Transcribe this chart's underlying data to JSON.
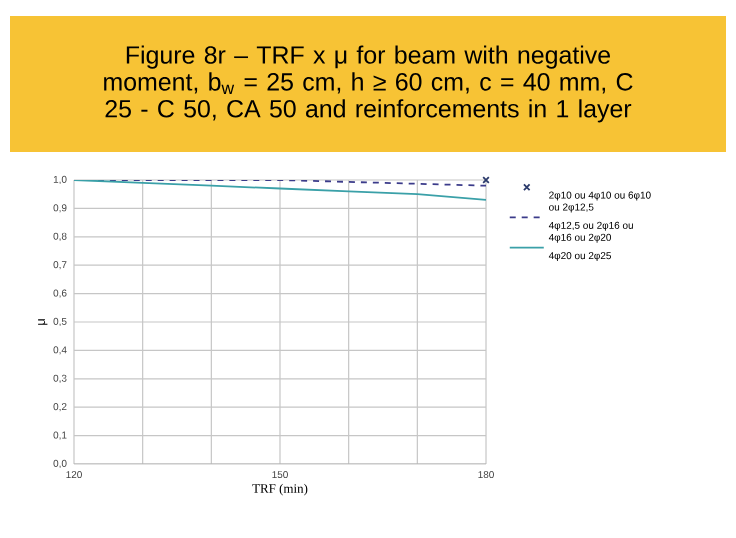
{
  "chart_data": {
    "type": "line",
    "title": "Figure 8r – TRF x μ for beam with negative moment, b$_{w}$ = 25 cm, h ≥ 60 cm, c = 40 mm, C 25 - C 50, CA 50 and reinforcements in 1 layer",
    "xlabel": "TRF (min)",
    "ylabel": "μ",
    "xlim": [
      120,
      180
    ],
    "xticks": [
      120,
      {
        "value": 130,
        "label": null
      },
      {
        "value": 140,
        "label": null
      },
      150,
      {
        "value": 160,
        "label": null
      },
      {
        "value": 170,
        "label": null
      },
      180
    ],
    "ylim": [
      0,
      1
    ],
    "yticks": [
      {
        "value": 0,
        "label": "0,0"
      },
      {
        "value": 0.1,
        "label": "0,1"
      },
      {
        "value": 0.2,
        "label": "0,2"
      },
      {
        "value": 0.3,
        "label": "0,3"
      },
      {
        "value": 0.4,
        "label": "0,4"
      },
      {
        "value": 0.5,
        "label": "0,5"
      },
      {
        "value": 0.6,
        "label": "0,6"
      },
      {
        "value": 0.7,
        "label": "0,7"
      },
      {
        "value": 0.8,
        "label": "0,8"
      },
      {
        "value": 0.9,
        "label": "0,9"
      },
      {
        "value": 1,
        "label": "1,0"
      }
    ],
    "grid": true,
    "legend": "right",
    "series": [
      {
        "name": "2φ10 ou 4φ10 ou 6φ10 ou 2φ12,5",
        "type": "scatter",
        "marker": "cross",
        "color": "#2b3a6b",
        "x": [
          180
        ],
        "values": [
          1.0
        ]
      },
      {
        "name": "4φ12,5 ou 2φ16 ou 4φ16 ou 2φ20",
        "type": "line",
        "line_style": "dashed",
        "color": "#3b3b8a",
        "x": [
          120,
          150,
          180
        ],
        "values": [
          1.0,
          1.0,
          0.98
        ]
      },
      {
        "name": "4φ20 ou 2φ25",
        "line_style": "solid",
        "color": "#3aa0a8",
        "x": [
          120,
          130,
          140,
          150,
          160,
          170,
          180
        ],
        "values": [
          1.0,
          0.99,
          0.98,
          0.97,
          0.96,
          0.95,
          0.93
        ]
      }
    ]
  }
}
